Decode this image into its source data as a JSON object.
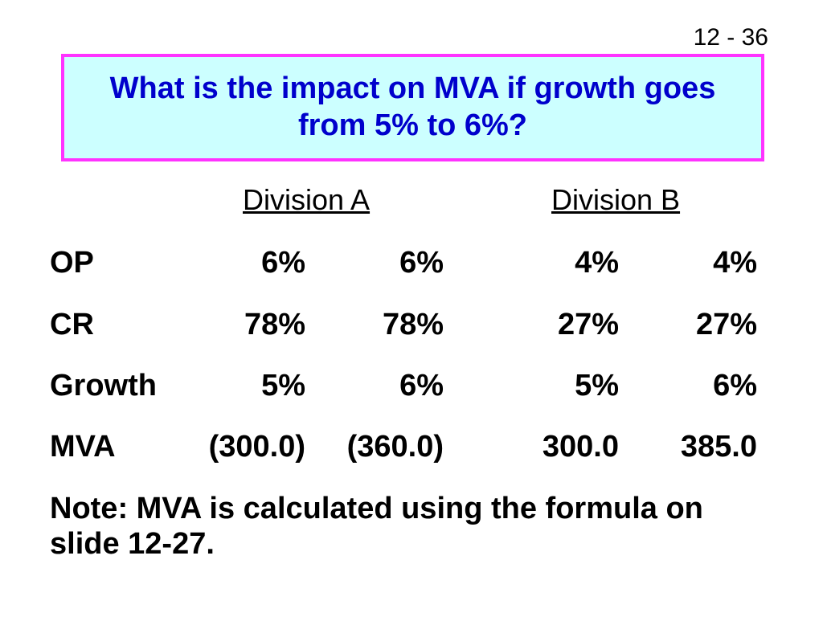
{
  "slide_number": "12 - 36",
  "title": "What is the impact on MVA if growth goes from 5% to 6%?",
  "table": {
    "division_headers": [
      "Division A",
      "Division B"
    ],
    "rows": [
      {
        "label": "OP",
        "values": [
          "6%",
          "6%",
          "4%",
          "4%"
        ]
      },
      {
        "label": "CR",
        "values": [
          "78%",
          "78%",
          "27%",
          "27%"
        ]
      },
      {
        "label": "Growth",
        "values": [
          "5%",
          "6%",
          "5%",
          "6%"
        ]
      },
      {
        "label": "MVA",
        "values": [
          "(300.0)",
          "(360.0)",
          "300.0",
          "385.0"
        ]
      }
    ]
  },
  "note": "Note: MVA is calculated using the formula on slide 12-27.",
  "colors": {
    "title_text": "#0000cc",
    "title_background": "#ccffff",
    "title_border": "#ff33ff"
  }
}
